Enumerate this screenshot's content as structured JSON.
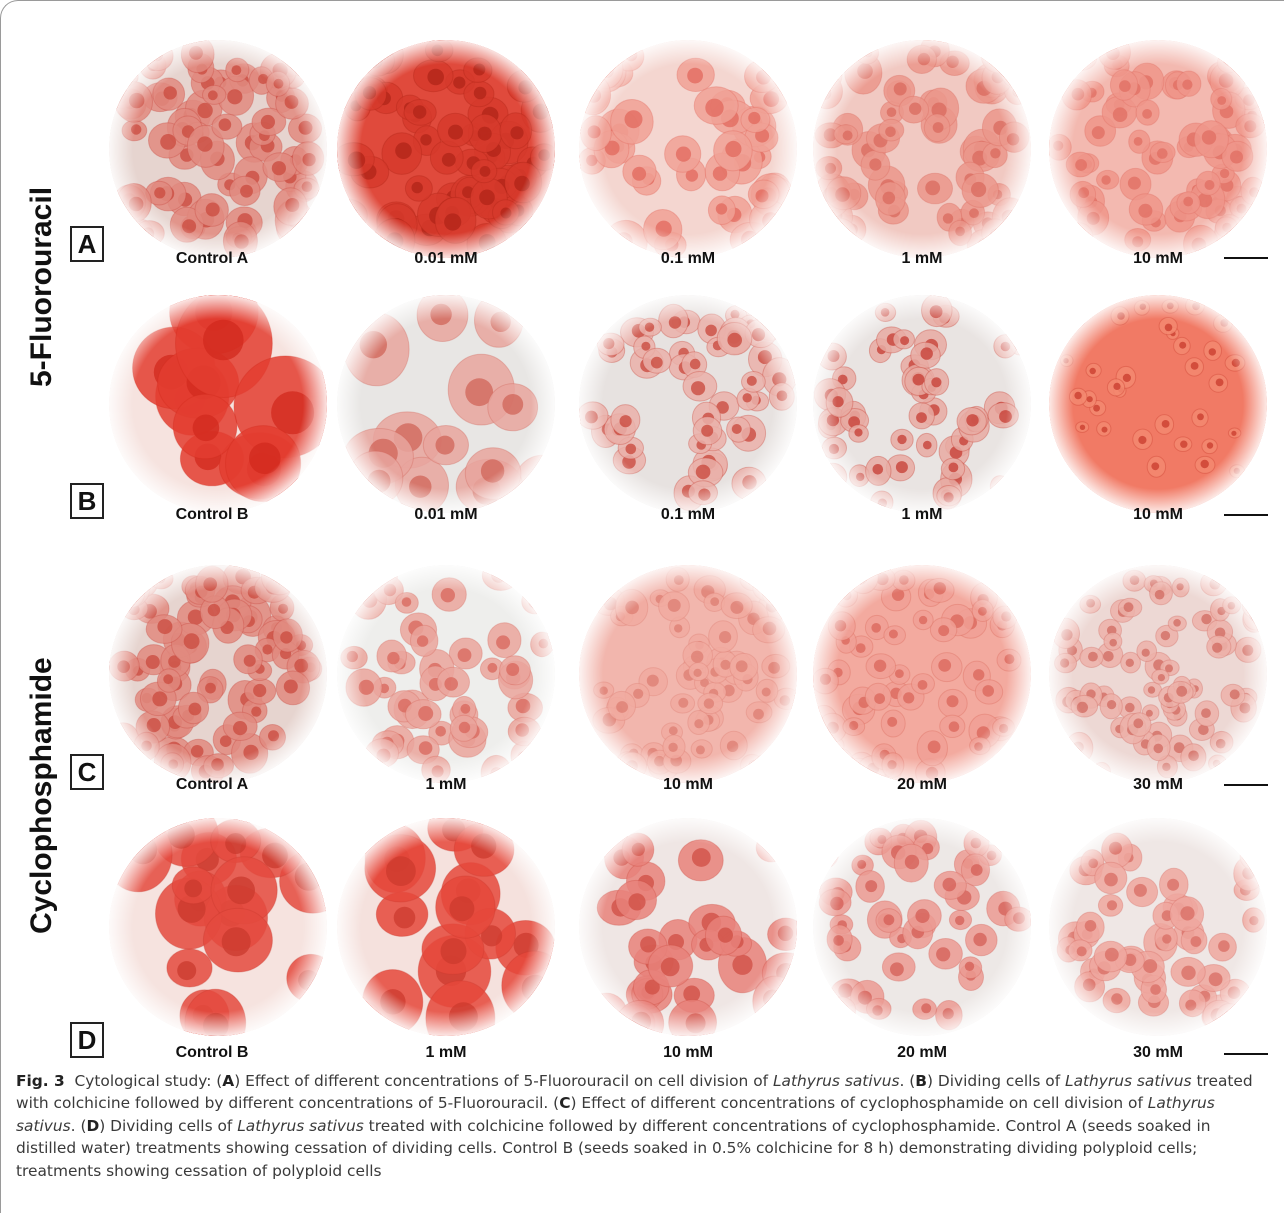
{
  "figure": {
    "side_labels": {
      "top": "5-Fluorouracil",
      "bottom": "Cyclophosphamide"
    },
    "rows": [
      {
        "letter": "A",
        "labels": [
          "Control  A",
          "0.01 mM",
          "0.1 mM",
          "1 mM",
          "10 mM"
        ]
      },
      {
        "letter": "B",
        "labels": [
          "Control  B",
          "0.01 mM",
          "0.1 mM",
          "1 mM",
          "10 mM"
        ]
      },
      {
        "letter": "C",
        "labels": [
          "Control  A",
          "1 mM",
          "10 mM",
          "20 mM",
          "30 mM"
        ]
      },
      {
        "letter": "D",
        "labels": [
          "Control  B",
          "1 mM",
          "10 mM",
          "20 mM",
          "30 mM"
        ]
      }
    ],
    "colors": {
      "stain_dark": "#d8392c",
      "stain_mid": "#e7756a",
      "stain_light": "#f2b1aa",
      "background_light": "#eef0ef"
    }
  },
  "caption": {
    "fig_label": "Fig. 3",
    "t1": "Cytological study: (",
    "A": "A",
    "t2": ") Effect of different concentrations of 5-Fluorouracil on cell division of ",
    "species": "Lathyrus sativus",
    "t3": ". (",
    "B": "B",
    "t4": ") Dividing cells of ",
    "t5": " treated with colchicine followed by different concentrations of 5-Fluorouracil. (",
    "C": "C",
    "t6": ") Effect of different concentrations of cyclophosphamide on cell division of ",
    "t7": ". (",
    "D": "D",
    "t8": ") Dividing cells of ",
    "t9": " treated with colchicine followed by different concentrations of cyclophosphamide. Control A (seeds soaked in distilled water) treatments showing cessation of dividing cells. Control B (seeds soaked in 0.5% colchicine for 8 h) demonstrating dividing polyploid cells; treatments showing cessation of polyploid cells"
  }
}
